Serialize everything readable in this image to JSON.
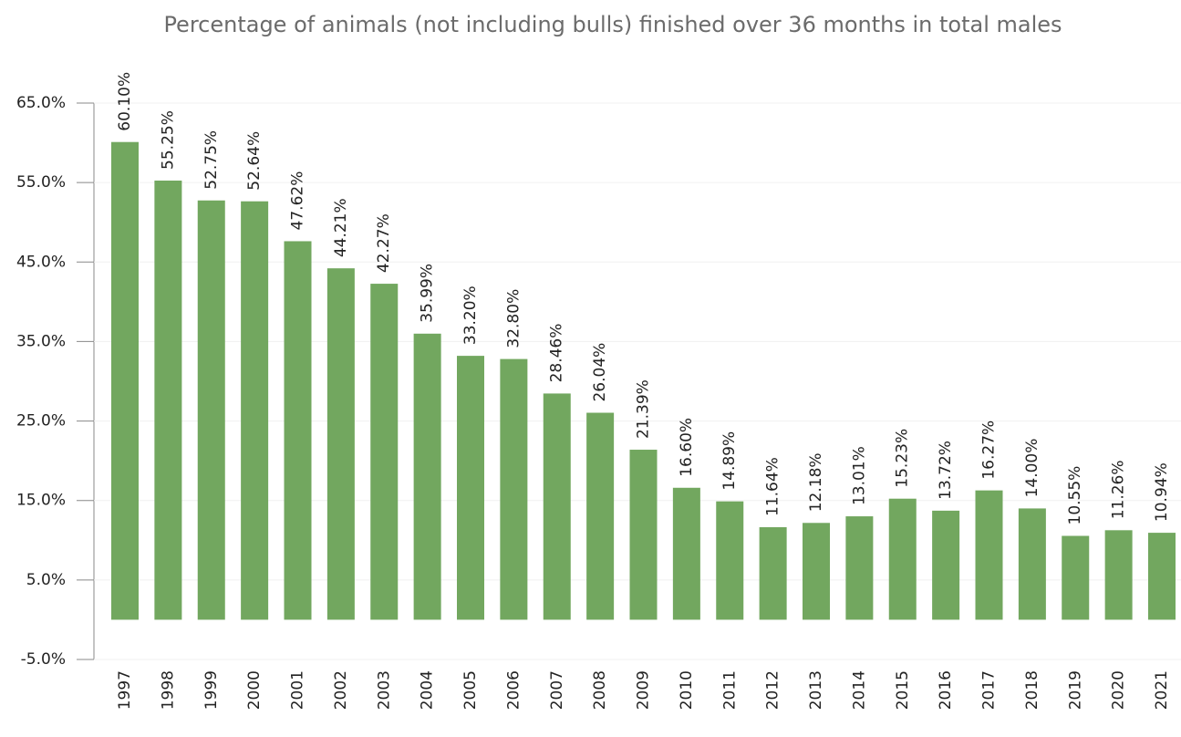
{
  "chart_data": {
    "type": "bar",
    "title": "Percentage of animals (not including bulls) finished over 36 months in total males",
    "categories": [
      "1997",
      "1998",
      "1999",
      "2000",
      "2001",
      "2002",
      "2003",
      "2004",
      "2005",
      "2006",
      "2007",
      "2008",
      "2009",
      "2010",
      "2011",
      "2012",
      "2013",
      "2014",
      "2015",
      "2016",
      "2017",
      "2018",
      "2019",
      "2020",
      "2021"
    ],
    "values": [
      60.1,
      55.25,
      52.75,
      52.64,
      47.62,
      44.21,
      42.27,
      35.99,
      33.2,
      32.8,
      28.46,
      26.04,
      21.39,
      16.6,
      14.89,
      11.64,
      12.18,
      13.01,
      15.23,
      13.72,
      16.27,
      14.0,
      10.55,
      11.26,
      10.94
    ],
    "value_labels": [
      "60.10%",
      "55.25%",
      "52.75%",
      "52.64%",
      "47.62%",
      "44.21%",
      "42.27%",
      "35.99%",
      "33.20%",
      "32.80%",
      "28.46%",
      "26.04%",
      "21.39%",
      "16.60%",
      "14.89%",
      "11.64%",
      "12.18%",
      "13.01%",
      "15.23%",
      "13.72%",
      "16.27%",
      "14.00%",
      "10.55%",
      "11.26%",
      "10.94%"
    ],
    "color": "#72a75f",
    "ylim": [
      -5,
      65
    ],
    "yticks": [
      {
        "value": -5,
        "label": "-5.0%"
      },
      {
        "value": 5,
        "label": "5.0%"
      },
      {
        "value": 15,
        "label": "15.0%"
      },
      {
        "value": 25,
        "label": "25.0%"
      },
      {
        "value": 35,
        "label": "35.0%"
      },
      {
        "value": 45,
        "label": "45.0%"
      },
      {
        "value": 55,
        "label": "55.0%"
      },
      {
        "value": 65,
        "label": "65.0%"
      }
    ],
    "grid": true
  }
}
